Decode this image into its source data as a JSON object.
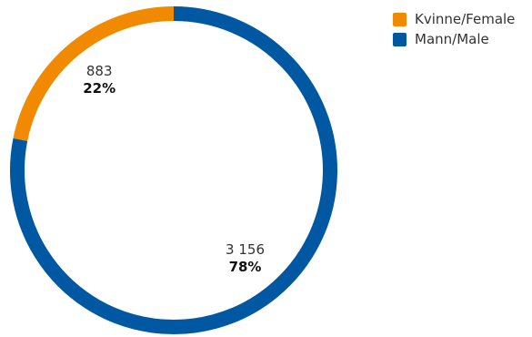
{
  "chart_data": {
    "type": "pie",
    "style": "donut",
    "title": "",
    "slices": [
      {
        "label": "Kvinne/Female",
        "value": 883,
        "value_label": "883",
        "percent_label": "22%",
        "color": "#f18a00"
      },
      {
        "label": "Mann/Male",
        "value": 3156,
        "value_label": "3 156",
        "percent_label": "78%",
        "color": "#0058a3"
      }
    ],
    "legend_position": "top-right"
  }
}
